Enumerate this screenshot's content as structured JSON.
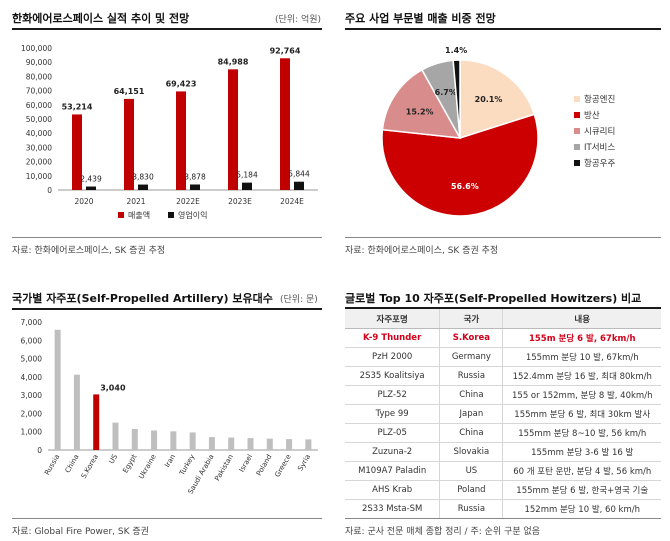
{
  "panels": {
    "tl": {
      "title": "한화에어로스페이스 실적 추이 및 전망",
      "unit": "(단위: 억원)",
      "source": "자료: 한화에어로스페이스, SK 증권 추정"
    },
    "tr": {
      "title": "주요 사업 부문별 매출 비중 전망",
      "source": "자료: 한화에어로스페이스, SK 증권 추정"
    },
    "bl": {
      "title": "국가별 자주포(Self-Propelled Artillery) 보유대수",
      "unit": "(단위: 문)",
      "source": "자료: Global Fire Power, SK 증권"
    },
    "br": {
      "title": "글로벌 Top 10 자주포(Self-Propelled Howitzers) 비교",
      "source": "자료: 군사 전문 매체 종합 정리 / 주: 순위 구분 없음"
    }
  },
  "chart_data": [
    {
      "type": "bar",
      "categories": [
        "2020",
        "2021",
        "2022E",
        "2023E",
        "2024E"
      ],
      "series": [
        {
          "name": "매출액",
          "values": [
            53214,
            64151,
            69423,
            84988,
            92764
          ],
          "color": "#c00000"
        },
        {
          "name": "영업이익",
          "values": [
            2439,
            3830,
            3878,
            5184,
            5844
          ],
          "color": "#111111"
        }
      ],
      "value_labels": [
        [
          "53,214",
          "64,151",
          "69,423",
          "84,988",
          "92,764"
        ],
        [
          "2,439",
          "3,830",
          "3,878",
          "5,184",
          "5,844"
        ]
      ],
      "yticks": [
        "0",
        "10,000",
        "20,000",
        "30,000",
        "40,000",
        "50,000",
        "60,000",
        "70,000",
        "80,000",
        "90,000",
        "100,000"
      ],
      "ylim": [
        0,
        100000
      ],
      "legend_position": "bottom"
    },
    {
      "type": "pie",
      "labels": [
        "항공엔진",
        "방산",
        "시큐리티",
        "IT서비스",
        "항공우주"
      ],
      "values": [
        20.1,
        56.6,
        15.2,
        6.7,
        1.4
      ],
      "value_labels": [
        "20.1%",
        "56.6%",
        "15.2%",
        "6.7%",
        "1.4%"
      ],
      "colors": [
        "#fcdcc0",
        "#cc0000",
        "#d98c8c",
        "#a6a6a6",
        "#111111"
      ],
      "legend_position": "right"
    },
    {
      "type": "bar",
      "categories": [
        "Russia",
        "China",
        "S.Korea",
        "US",
        "Egypt",
        "Ukraine",
        "Iran",
        "Turkey",
        "Saudi Arabia",
        "Pakistan",
        "Israel",
        "Poland",
        "Greece",
        "Syria"
      ],
      "values": [
        6574,
        4120,
        3040,
        1498,
        1150,
        1067,
        1020,
        960,
        705,
        680,
        650,
        620,
        595,
        580
      ],
      "highlight": "S.Korea",
      "highlight_label": "3,040",
      "colors": {
        "default": "#bfbfbf",
        "highlight": "#c00000"
      },
      "yticks": [
        "0",
        "1,000",
        "2,000",
        "3,000",
        "4,000",
        "5,000",
        "6,000",
        "7,000"
      ],
      "ylim": [
        0,
        7000
      ]
    }
  ],
  "table": {
    "headers": [
      "자주포명",
      "국가",
      "내용"
    ],
    "rows": [
      {
        "name": "K-9 Thunder",
        "country": "S.Korea",
        "desc": "155m 분당 6 발, 67km/h",
        "highlight": true
      },
      {
        "name": "PzH 2000",
        "country": "Germany",
        "desc": "155mm 분당 10 발, 67km/h"
      },
      {
        "name": "2S35 Koalitsiya",
        "country": "Russia",
        "desc": "152.4mm 분당 16 발, 최대 80km/h"
      },
      {
        "name": "PLZ-52",
        "country": "China",
        "desc": "155 or 152mm, 분당 8 발, 40km/h"
      },
      {
        "name": "Type 99",
        "country": "Japan",
        "desc": "155mm 분당 6 발, 최대 30km 발사"
      },
      {
        "name": "PLZ-05",
        "country": "China",
        "desc": "155mm 분당 8~10 발, 56 km/h"
      },
      {
        "name": "Zuzuna-2",
        "country": "Slovakia",
        "desc": "155mm 분당 3-6 발 16 발"
      },
      {
        "name": "M109A7 Paladin",
        "country": "US",
        "desc": "60 개 포탄 운반, 분당 4 발, 56 km/h"
      },
      {
        "name": "AHS Krab",
        "country": "Poland",
        "desc": "155mm 분당 6 발, 한국+영국 기술"
      },
      {
        "name": "2S33 Msta-SM",
        "country": "Russia",
        "desc": "152mm 분당 10 발, 60 km/h"
      }
    ]
  }
}
